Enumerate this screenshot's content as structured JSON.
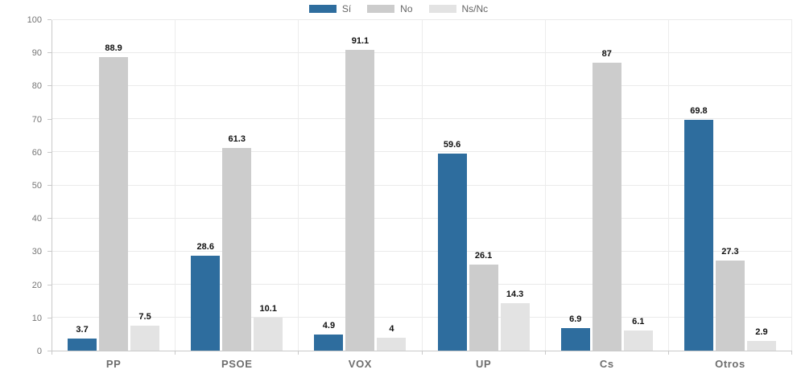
{
  "chart_data": {
    "type": "bar",
    "title": "",
    "categories": [
      "PP",
      "PSOE",
      "VOX",
      "UP",
      "Cs",
      "Otros"
    ],
    "series": [
      {
        "name": "Sí",
        "color": "#2e6d9e",
        "values": [
          3.7,
          28.6,
          4.9,
          59.6,
          6.9,
          69.8
        ]
      },
      {
        "name": "No",
        "color": "#cccccc",
        "values": [
          88.9,
          61.3,
          91.1,
          26.1,
          87,
          27.3
        ]
      },
      {
        "name": "Ns/Nc",
        "color": "#e3e3e3",
        "values": [
          7.5,
          10.1,
          4,
          14.3,
          6.1,
          2.9
        ]
      }
    ],
    "xlabel": "",
    "ylabel": "",
    "ylim": [
      0,
      100
    ],
    "yticks": [
      0,
      10,
      20,
      30,
      40,
      50,
      60,
      70,
      80,
      90,
      100
    ],
    "grid": true,
    "legend_position": "top",
    "value_labels_shown": true
  },
  "colors": {
    "accent_blue": "#2e6d9e",
    "bar_gray": "#cccccc",
    "bar_light_gray": "#e3e3e3",
    "axis_line": "#c9c9c9",
    "gridline": "#eaeaea",
    "tick_text": "#757575",
    "category_text": "#6e6e6e",
    "value_text": "#111111",
    "legend_text": "#666666"
  }
}
